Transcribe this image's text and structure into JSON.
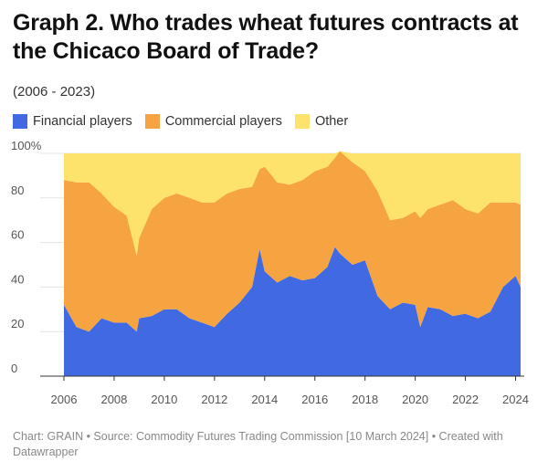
{
  "title": "Graph 2. Who trades wheat futures contracts at the Chicaco Board of Trade?",
  "subtitle": "(2006 - 2023)",
  "legend": [
    {
      "label": "Financial players",
      "color": "#4169e1"
    },
    {
      "label": "Commercial players",
      "color": "#f5a441"
    },
    {
      "label": "Other",
      "color": "#fde26b"
    }
  ],
  "footer": "Chart: GRAIN • Source: Commodity Futures Trading Commission [10 March 2024] • Created with Datawrapper",
  "chart_data": {
    "type": "area",
    "stacked": true,
    "title": "Graph 2. Who trades wheat futures contracts at the Chicaco Board of Trade?",
    "subtitle": "(2006 - 2023)",
    "x": [
      2006.0,
      2006.5,
      2007.0,
      2007.5,
      2008.0,
      2008.5,
      2008.9,
      2009.0,
      2009.5,
      2010.0,
      2010.5,
      2011.0,
      2011.5,
      2012.0,
      2012.5,
      2013.0,
      2013.5,
      2013.8,
      2014.0,
      2014.5,
      2015.0,
      2015.5,
      2016.0,
      2016.5,
      2016.8,
      2017.0,
      2017.5,
      2018.0,
      2018.5,
      2019.0,
      2019.5,
      2020.0,
      2020.2,
      2020.5,
      2021.0,
      2021.5,
      2022.0,
      2022.5,
      2023.0,
      2023.5,
      2024.0,
      2024.2
    ],
    "series": [
      {
        "name": "Financial players",
        "color": "#4169e1",
        "values": [
          32,
          22,
          20,
          26,
          24,
          24,
          20,
          26,
          27,
          30,
          30,
          26,
          24,
          22,
          28,
          33,
          40,
          57,
          47,
          42,
          45,
          43,
          44,
          49,
          58,
          55,
          50,
          52,
          36,
          30,
          33,
          32,
          22,
          31,
          30,
          27,
          28,
          26,
          29,
          40,
          45,
          40
        ]
      },
      {
        "name": "Commercial players",
        "color": "#f5a441",
        "values": [
          56,
          65,
          67,
          56,
          52,
          48,
          34,
          36,
          48,
          50,
          52,
          54,
          54,
          56,
          54,
          51,
          45,
          36,
          47,
          45,
          41,
          45,
          48,
          45,
          40,
          46,
          46,
          40,
          47,
          40,
          38,
          42,
          49,
          44,
          47,
          52,
          47,
          47,
          49,
          38,
          33,
          37
        ]
      },
      {
        "name": "Other",
        "color": "#fde26b",
        "values": [
          12,
          13,
          13,
          18,
          24,
          28,
          46,
          38,
          25,
          20,
          18,
          20,
          22,
          22,
          18,
          16,
          15,
          7,
          6,
          13,
          14,
          12,
          8,
          6,
          2,
          0,
          4,
          8,
          17,
          30,
          29,
          26,
          29,
          25,
          23,
          21,
          25,
          27,
          22,
          22,
          22,
          23
        ]
      }
    ],
    "xlim": [
      2006,
      2024.2
    ],
    "ylim": [
      0,
      100
    ],
    "x_ticks": [
      "2006",
      "2008",
      "2010",
      "2012",
      "2014",
      "2016",
      "2018",
      "2020",
      "2022",
      "2024"
    ],
    "y_ticks": [
      "0",
      "20",
      "40",
      "60",
      "80",
      "100%"
    ],
    "grid": true,
    "legend_position": "top-left"
  }
}
